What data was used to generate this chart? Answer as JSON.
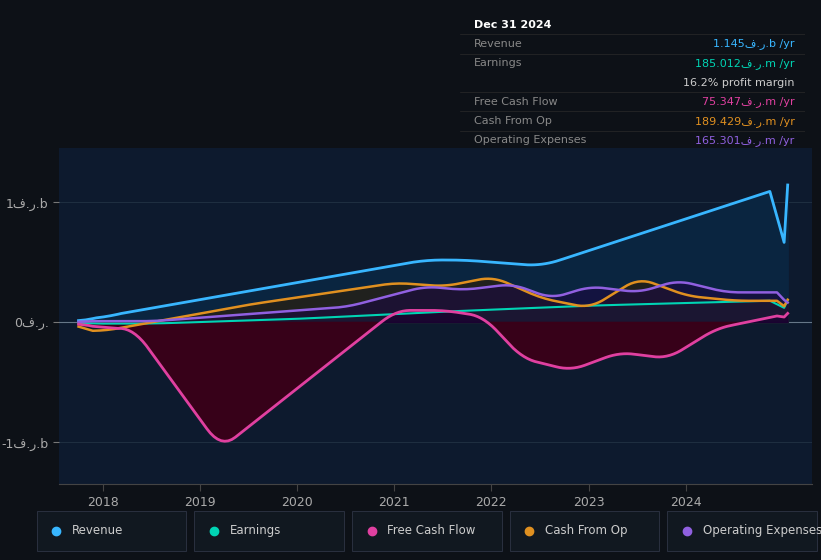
{
  "background_color": "#0d1117",
  "chart_bg": "#0d1a2e",
  "title": "Dec 31 2024",
  "ytick_labels": [
    "1ف.ر.b",
    "0ف.ر.",
    "-1ف.ر.b"
  ],
  "ytick_positions": [
    1000000000,
    0,
    -1000000000
  ],
  "xtick_labels": [
    "2018",
    "2019",
    "2020",
    "2021",
    "2022",
    "2023",
    "2024"
  ],
  "ylim": [
    -1350000000.0,
    1450000000.0
  ],
  "xlim_start": 2017.55,
  "xlim_end": 2025.3,
  "revenue_color": "#38b6ff",
  "revenue_fill": "#0d2d4a",
  "earnings_color": "#00d4b4",
  "fcf_color": "#e040a0",
  "fcf_fill": "#3d0020",
  "cashfromop_color": "#e09020",
  "opex_color": "#9060e0",
  "legend_labels": [
    "Revenue",
    "Earnings",
    "Free Cash Flow",
    "Cash From Op",
    "Operating Expenses"
  ],
  "legend_colors": [
    "#38b6ff",
    "#00d4b4",
    "#e040a0",
    "#e09020",
    "#9060e0"
  ],
  "table_rows": [
    {
      "label": "Dec 31 2024",
      "value": "",
      "label_color": "#ffffff",
      "value_color": "#ffffff",
      "bold": true
    },
    {
      "label": "Revenue",
      "value": "1.145ف.ر.b /yr",
      "label_color": "#888888",
      "value_color": "#38b6ff",
      "bold": false
    },
    {
      "label": "Earnings",
      "value": "185.012ف.ر.m /yr",
      "label_color": "#888888",
      "value_color": "#00d4b4",
      "bold": false
    },
    {
      "label": "",
      "value": "16.2% profit margin",
      "label_color": "#888888",
      "value_color": "#cccccc",
      "bold": false
    },
    {
      "label": "Free Cash Flow",
      "value": "75.347ف.ر.m /yr",
      "label_color": "#888888",
      "value_color": "#e040a0",
      "bold": false
    },
    {
      "label": "Cash From Op",
      "value": "189.429ف.ر.m /yr",
      "label_color": "#888888",
      "value_color": "#e09020",
      "bold": false
    },
    {
      "label": "Operating Expenses",
      "value": "165.301ف.ر.m /yr",
      "label_color": "#888888",
      "value_color": "#9060e0",
      "bold": false
    }
  ]
}
